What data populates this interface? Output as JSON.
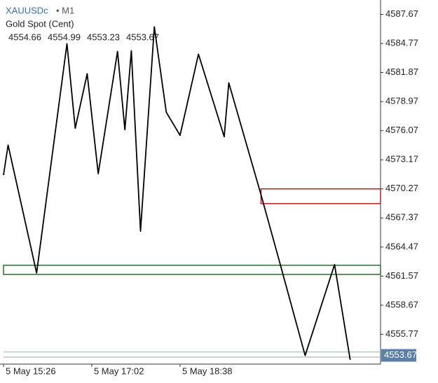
{
  "chart_data": {
    "type": "line",
    "symbol": "XAUUSDc",
    "timeframe": "• M1",
    "subtitle": "Gold Spot (Cent)",
    "ohlc": [
      4554.66,
      4554.99,
      4553.23,
      4553.67
    ],
    "x": [
      926,
      931,
      962,
      995,
      1004,
      1017,
      1029,
      1050,
      1058,
      1065,
      1075,
      1090,
      1103,
      1118,
      1138,
      1166,
      1171,
      1206,
      1227,
      1254,
      1286,
      1303
    ],
    "values": [
      4571.64,
      4574.64,
      4561.88,
      4584.74,
      4576.31,
      4581.75,
      4571.78,
      4583.97,
      4576.17,
      4584.04,
      4566.06,
      4586.42,
      4577.91,
      4575.61,
      4583.7,
      4575.47,
      4580.84,
      4569.69,
      4562.72,
      4553.66,
      4562.72,
      4553.23
    ],
    "color": "#000000",
    "xlim": [
      926,
      1336
    ],
    "xticks": [
      {
        "value": 926,
        "label": "5 May 15:26"
      },
      {
        "value": 1022,
        "label": "5 May 17:02"
      },
      {
        "value": 1118,
        "label": "5 May 18:38"
      }
    ],
    "ylim": [
      4552.8,
      4589.1
    ],
    "yticks": [
      4587.67,
      4584.77,
      4581.87,
      4578.97,
      4576.07,
      4573.17,
      4570.27,
      4567.37,
      4564.47,
      4561.57,
      4558.67,
      4555.77
    ],
    "zones": [
      {
        "x0": 1206,
        "ymin": 4568.8,
        "ymax": 4570.27,
        "color": "#b22222"
      },
      {
        "x0": 926,
        "ymin": 4561.74,
        "ymax": 4562.65,
        "color": "#2e6b2e"
      }
    ],
    "hlines": [
      {
        "value": 4554.0,
        "color": "#8fbcb0"
      },
      {
        "value": 4553.5,
        "color": "#9aa7b0"
      }
    ],
    "last": 4553.67,
    "last_color": "#5b7fa6"
  }
}
